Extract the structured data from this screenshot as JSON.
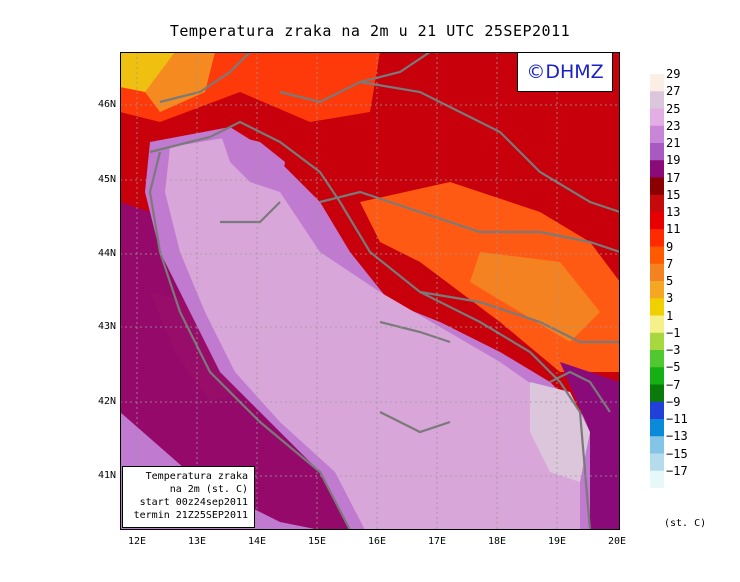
{
  "title": "Temperatura zraka na 2m u 21 UTC 25SEP2011",
  "logo_text": "©DHMZ",
  "info_box": {
    "line1": "Temperatura zraka",
    "line2": "na 2m (st. C)",
    "line3": "start 00z24sep2011",
    "line4": "termin 21Z25SEP2011"
  },
  "lat_ticks": [
    "46N",
    "45N",
    "44N",
    "43N",
    "42N",
    "41N"
  ],
  "lon_ticks": [
    "12E",
    "13E",
    "14E",
    "15E",
    "16E",
    "17E",
    "18E",
    "19E",
    "20E"
  ],
  "colorbar": {
    "unit": "(st. C)",
    "labels": [
      "29",
      "27",
      "25",
      "23",
      "21",
      "19",
      "17",
      "15",
      "13",
      "11",
      "9",
      "7",
      "5",
      "3",
      "1",
      "−1",
      "−3",
      "−5",
      "−7",
      "−9",
      "−11",
      "−13",
      "−15",
      "−17"
    ],
    "colors": [
      "#fbeee4",
      "#dcc6dc",
      "#e3aee3",
      "#c986d6",
      "#a85ac2",
      "#8b0a7a",
      "#8b0000",
      "#c40a0a",
      "#e80000",
      "#ff2a00",
      "#ff5a00",
      "#f58220",
      "#f5a623",
      "#f0d000",
      "#f5f08a",
      "#a8d840",
      "#50c830",
      "#14b014",
      "#0a7a0a",
      "#2040d8",
      "#0a8ad8",
      "#84c4e6",
      "#b4dcec",
      "#e6f8f8"
    ]
  },
  "colors": {
    "sea_light": "#d8a6d8",
    "sea_mid": "#c07ad0",
    "coast_purple": "#8b0a7a",
    "land_red": "#d80010",
    "land_orange": "#ff5a14",
    "border_grey": "#7a7a7a",
    "logo_blue": "#1a22c8"
  }
}
